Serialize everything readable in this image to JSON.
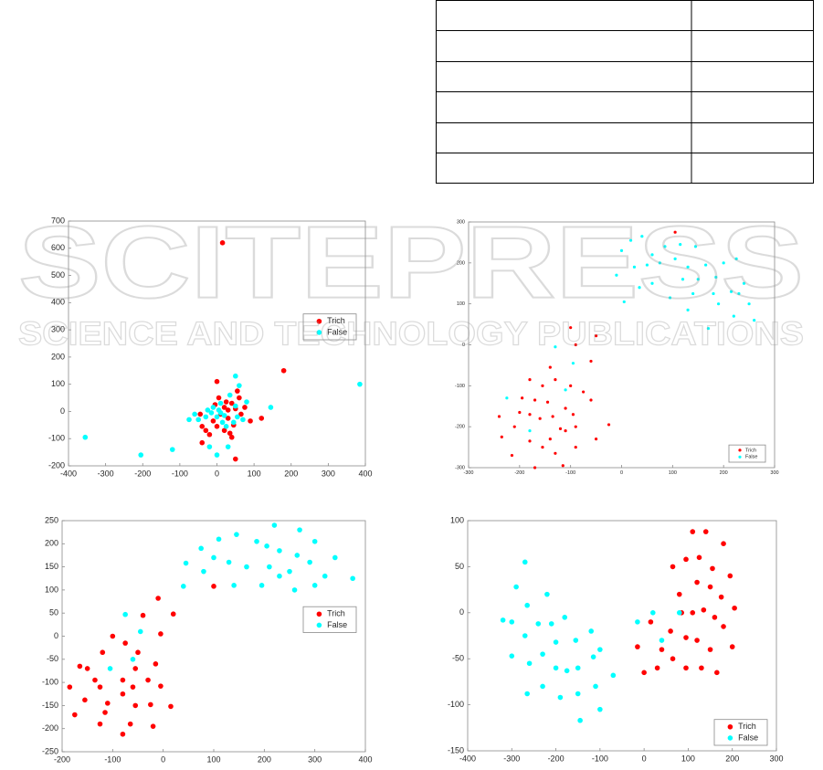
{
  "watermark": {
    "title": "SCITEPRESS",
    "subtitle": "SCIENCE AND TECHNOLOGY PUBLICATIONS"
  },
  "chart_data": [
    {
      "type": "scatter",
      "legend": "right",
      "xlim": [
        -400,
        400
      ],
      "xticks": [
        -400,
        -300,
        -200,
        -100,
        0,
        100,
        200,
        300,
        400
      ],
      "ylim": [
        -200,
        700
      ],
      "yticks": [
        -200,
        -100,
        0,
        100,
        200,
        300,
        400,
        500,
        600,
        700
      ],
      "series": [
        {
          "name": "Trich",
          "color": "#ff0000",
          "x": [
            15,
            180,
            0,
            -45,
            -40,
            -30,
            -40,
            -20,
            -10,
            0,
            10,
            20,
            25,
            30,
            35,
            40,
            45,
            50,
            55,
            60,
            65,
            75,
            90,
            120,
            20,
            5,
            50,
            -5,
            30,
            40
          ],
          "values": [
            620,
            150,
            110,
            -10,
            -55,
            -70,
            -115,
            -85,
            -35,
            -55,
            -10,
            15,
            35,
            -25,
            -80,
            -95,
            -50,
            10,
            75,
            50,
            -10,
            15,
            -35,
            -25,
            -70,
            50,
            -175,
            25,
            5,
            30
          ]
        },
        {
          "name": "False",
          "color": "#00ffff",
          "x": [
            -355,
            -205,
            -120,
            385,
            145,
            0,
            50,
            -75,
            -60,
            -50,
            -30,
            -25,
            -15,
            -10,
            0,
            5,
            10,
            15,
            20,
            35,
            45,
            50,
            55,
            60,
            70,
            80,
            30,
            -20,
            10,
            25
          ],
          "values": [
            -95,
            -160,
            -140,
            100,
            15,
            -160,
            130,
            -30,
            -10,
            -30,
            -20,
            5,
            -5,
            15,
            -20,
            5,
            30,
            -40,
            -15,
            60,
            -40,
            20,
            -20,
            95,
            -30,
            35,
            -130,
            -130,
            -5,
            -55
          ]
        }
      ]
    },
    {
      "type": "scatter",
      "legend": "lower right",
      "xlim": [
        -300,
        300
      ],
      "xticks": [
        -300,
        -200,
        -100,
        0,
        100,
        200,
        300
      ],
      "ylim": [
        -300,
        300
      ],
      "yticks": [
        -300,
        -200,
        -100,
        0,
        100,
        200,
        300
      ],
      "series": [
        {
          "name": "Trich",
          "color": "#ff0000",
          "x": [
            -100,
            -50,
            -90,
            -60,
            105,
            -140,
            -155,
            -180,
            -130,
            -100,
            -75,
            -195,
            -170,
            -145,
            -110,
            -200,
            -180,
            -135,
            -95,
            -60,
            -160,
            -90,
            -210,
            -120,
            -240,
            -25,
            -50,
            -180,
            -155,
            -90,
            -130,
            -215,
            -115,
            -170,
            -235,
            -110,
            -140
          ],
          "values": [
            42,
            22,
            0,
            -40,
            275,
            -55,
            -100,
            -85,
            -85,
            -100,
            -115,
            -130,
            -135,
            -140,
            -155,
            -165,
            -170,
            -175,
            -170,
            -135,
            -180,
            -200,
            -200,
            -205,
            -175,
            -195,
            -230,
            -235,
            -250,
            -250,
            -265,
            -270,
            -295,
            -300,
            -225,
            -210,
            -230
          ]
        },
        {
          "name": "False",
          "color": "#00ffff",
          "x": [
            18,
            40,
            0,
            60,
            85,
            115,
            145,
            105,
            75,
            50,
            25,
            -10,
            130,
            165,
            185,
            200,
            225,
            240,
            215,
            180,
            150,
            120,
            95,
            60,
            35,
            5,
            140,
            130,
            190,
            230,
            250,
            260,
            170,
            220,
            -130,
            -225,
            -180,
            -95,
            -110
          ],
          "values": [
            255,
            265,
            230,
            220,
            240,
            245,
            240,
            210,
            200,
            195,
            190,
            170,
            190,
            195,
            165,
            200,
            210,
            150,
            130,
            125,
            160,
            160,
            115,
            150,
            140,
            105,
            125,
            85,
            100,
            125,
            100,
            60,
            40,
            70,
            -5,
            -130,
            -210,
            -45,
            -110
          ]
        }
      ]
    },
    {
      "type": "scatter",
      "legend": "right",
      "xlim": [
        -200,
        400
      ],
      "xticks": [
        -200,
        -100,
        0,
        100,
        200,
        300,
        400
      ],
      "ylim": [
        -250,
        250
      ],
      "yticks": [
        -250,
        -200,
        -150,
        -100,
        -50,
        0,
        50,
        100,
        150,
        200,
        250
      ],
      "series": [
        {
          "name": "Trich",
          "color": "#ff0000",
          "x": [
            -10,
            20,
            -40,
            -100,
            -5,
            -75,
            -120,
            -50,
            -150,
            -165,
            -125,
            -80,
            -55,
            -15,
            -185,
            -135,
            -30,
            -5,
            -155,
            -110,
            -60,
            -80,
            -175,
            -115,
            -55,
            -25,
            15,
            -125,
            -65,
            -20,
            -80,
            100
          ],
          "values": [
            82,
            48,
            45,
            0,
            5,
            -15,
            -35,
            -35,
            -70,
            -65,
            -110,
            -95,
            -70,
            -60,
            -110,
            -95,
            -95,
            -108,
            -138,
            -145,
            -110,
            -125,
            -170,
            -165,
            -150,
            -148,
            -152,
            -190,
            -190,
            -195,
            -212,
            108
          ]
        },
        {
          "name": "False",
          "color": "#00ffff",
          "x": [
            220,
            270,
            300,
            340,
            375,
            145,
            185,
            110,
            75,
            45,
            100,
            130,
            165,
            210,
            250,
            290,
            320,
            260,
            230,
            195,
            140,
            80,
            40,
            230,
            265,
            300,
            205,
            -75,
            -45,
            -60,
            -105
          ],
          "values": [
            240,
            230,
            205,
            170,
            125,
            220,
            205,
            210,
            190,
            158,
            170,
            160,
            150,
            150,
            140,
            160,
            130,
            100,
            130,
            110,
            110,
            140,
            108,
            185,
            175,
            110,
            195,
            47,
            10,
            -50,
            -70
          ]
        }
      ]
    },
    {
      "type": "scatter",
      "legend": "lower right",
      "xlim": [
        -400,
        300
      ],
      "xticks": [
        -400,
        -300,
        -200,
        -100,
        0,
        100,
        200,
        300
      ],
      "ylim": [
        -150,
        100
      ],
      "yticks": [
        -150,
        -100,
        -50,
        0,
        50,
        100
      ],
      "series": [
        {
          "name": "Trich",
          "color": "#ff0000",
          "x": [
            110,
            140,
            180,
            195,
            155,
            125,
            95,
            65,
            120,
            150,
            175,
            205,
            80,
            110,
            135,
            160,
            180,
            60,
            95,
            120,
            150,
            200,
            15,
            -15,
            0,
            30,
            65,
            95,
            130,
            165,
            40,
            85
          ],
          "values": [
            88,
            88,
            75,
            40,
            48,
            60,
            58,
            50,
            33,
            28,
            17,
            5,
            20,
            0,
            3,
            -5,
            -15,
            -20,
            -27,
            -30,
            -40,
            -37,
            -10,
            -37,
            -65,
            -60,
            -50,
            -60,
            -60,
            -65,
            -40,
            0
          ]
        },
        {
          "name": "False",
          "color": "#00ffff",
          "x": [
            -270,
            -290,
            -265,
            -220,
            -320,
            -300,
            -240,
            -210,
            -180,
            -270,
            -230,
            -200,
            -155,
            -120,
            -300,
            -260,
            -200,
            -175,
            -150,
            -115,
            -100,
            -230,
            -190,
            -150,
            -110,
            -265,
            -70,
            -145,
            -100,
            20,
            40,
            80,
            -15
          ],
          "values": [
            55,
            28,
            8,
            20,
            -8,
            -10,
            -12,
            -12,
            -5,
            -25,
            -45,
            -32,
            -30,
            -20,
            -47,
            -55,
            -60,
            -63,
            -60,
            -48,
            -40,
            -80,
            -92,
            -88,
            -80,
            -88,
            -68,
            -117,
            -105,
            0,
            -30,
            0,
            -10
          ]
        }
      ]
    }
  ]
}
